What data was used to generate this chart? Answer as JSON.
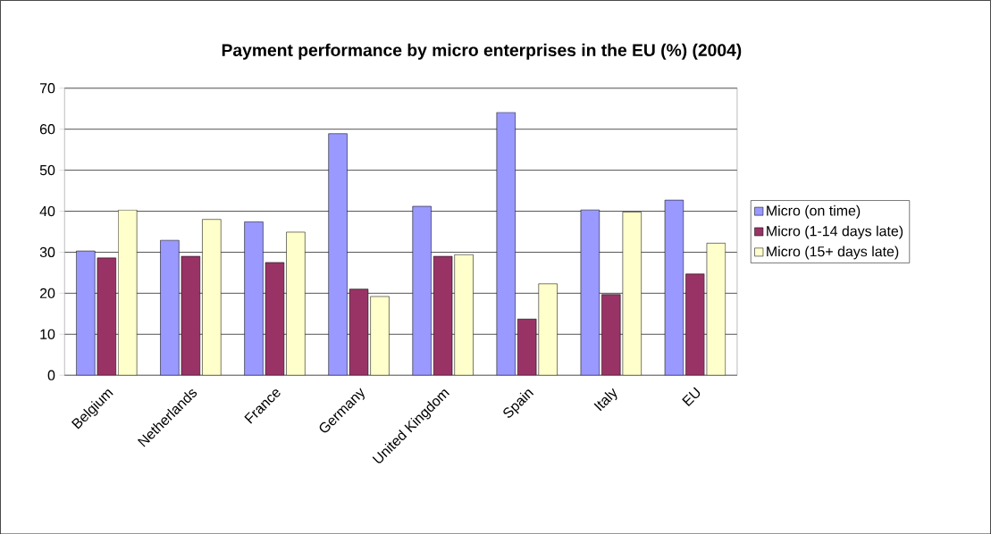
{
  "chart_data": {
    "type": "bar",
    "title": "Payment performance by micro enterprises in the EU (%) (2004)",
    "categories": [
      "Belgium",
      "Netherlands",
      "France",
      "Germany",
      "United Kingdom",
      "Spain",
      "Italy",
      "EU"
    ],
    "series": [
      {
        "name": "Micro (on time)",
        "color": "#9999ff",
        "values": [
          30.3,
          32.9,
          37.4,
          58.9,
          41.2,
          64.1,
          40.3,
          42.7
        ]
      },
      {
        "name": "Micro (1-14 days late)",
        "color": "#993366",
        "values": [
          28.6,
          29.0,
          27.5,
          21.0,
          29.0,
          13.7,
          19.7,
          24.7
        ]
      },
      {
        "name": "Micro (15+ days late)",
        "color": "#ffffcc",
        "values": [
          40.3,
          38.0,
          34.9,
          19.2,
          29.4,
          22.3,
          39.8,
          32.2
        ]
      }
    ],
    "ylim": [
      0,
      70
    ],
    "yticks": [
      0,
      10,
      20,
      30,
      40,
      50,
      60,
      70
    ],
    "grid": "y",
    "legend": "right"
  }
}
